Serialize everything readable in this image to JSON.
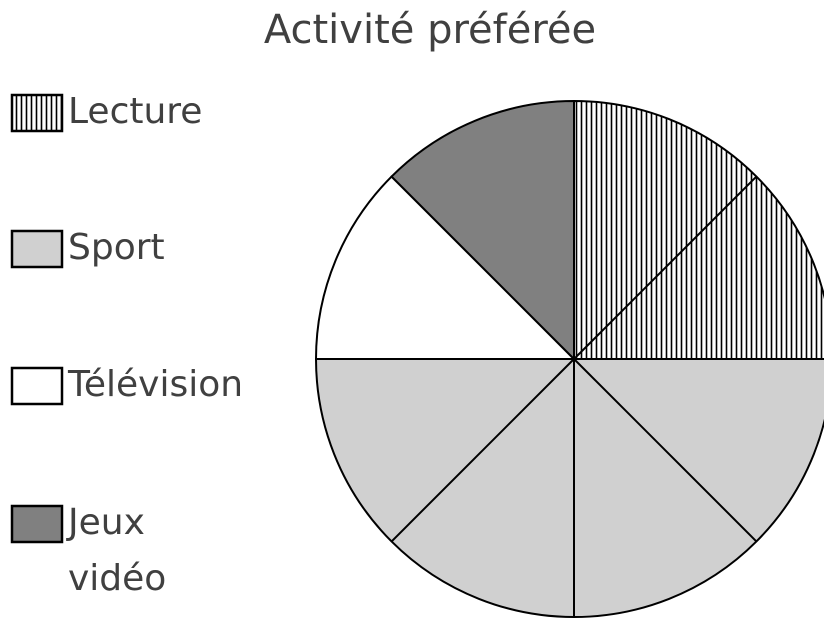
{
  "chart_data": {
    "type": "pie",
    "title": "Activité préférée",
    "categories": [
      "Lecture",
      "Sport",
      "Télévision",
      "Jeux vidéo"
    ],
    "values": [
      25,
      50,
      12.5,
      12.5
    ],
    "colors": [
      "#ffffff",
      "#d0d0d0",
      "#ffffff",
      "#808080"
    ],
    "hatch": [
      true,
      false,
      false,
      false
    ],
    "legend": "left"
  }
}
